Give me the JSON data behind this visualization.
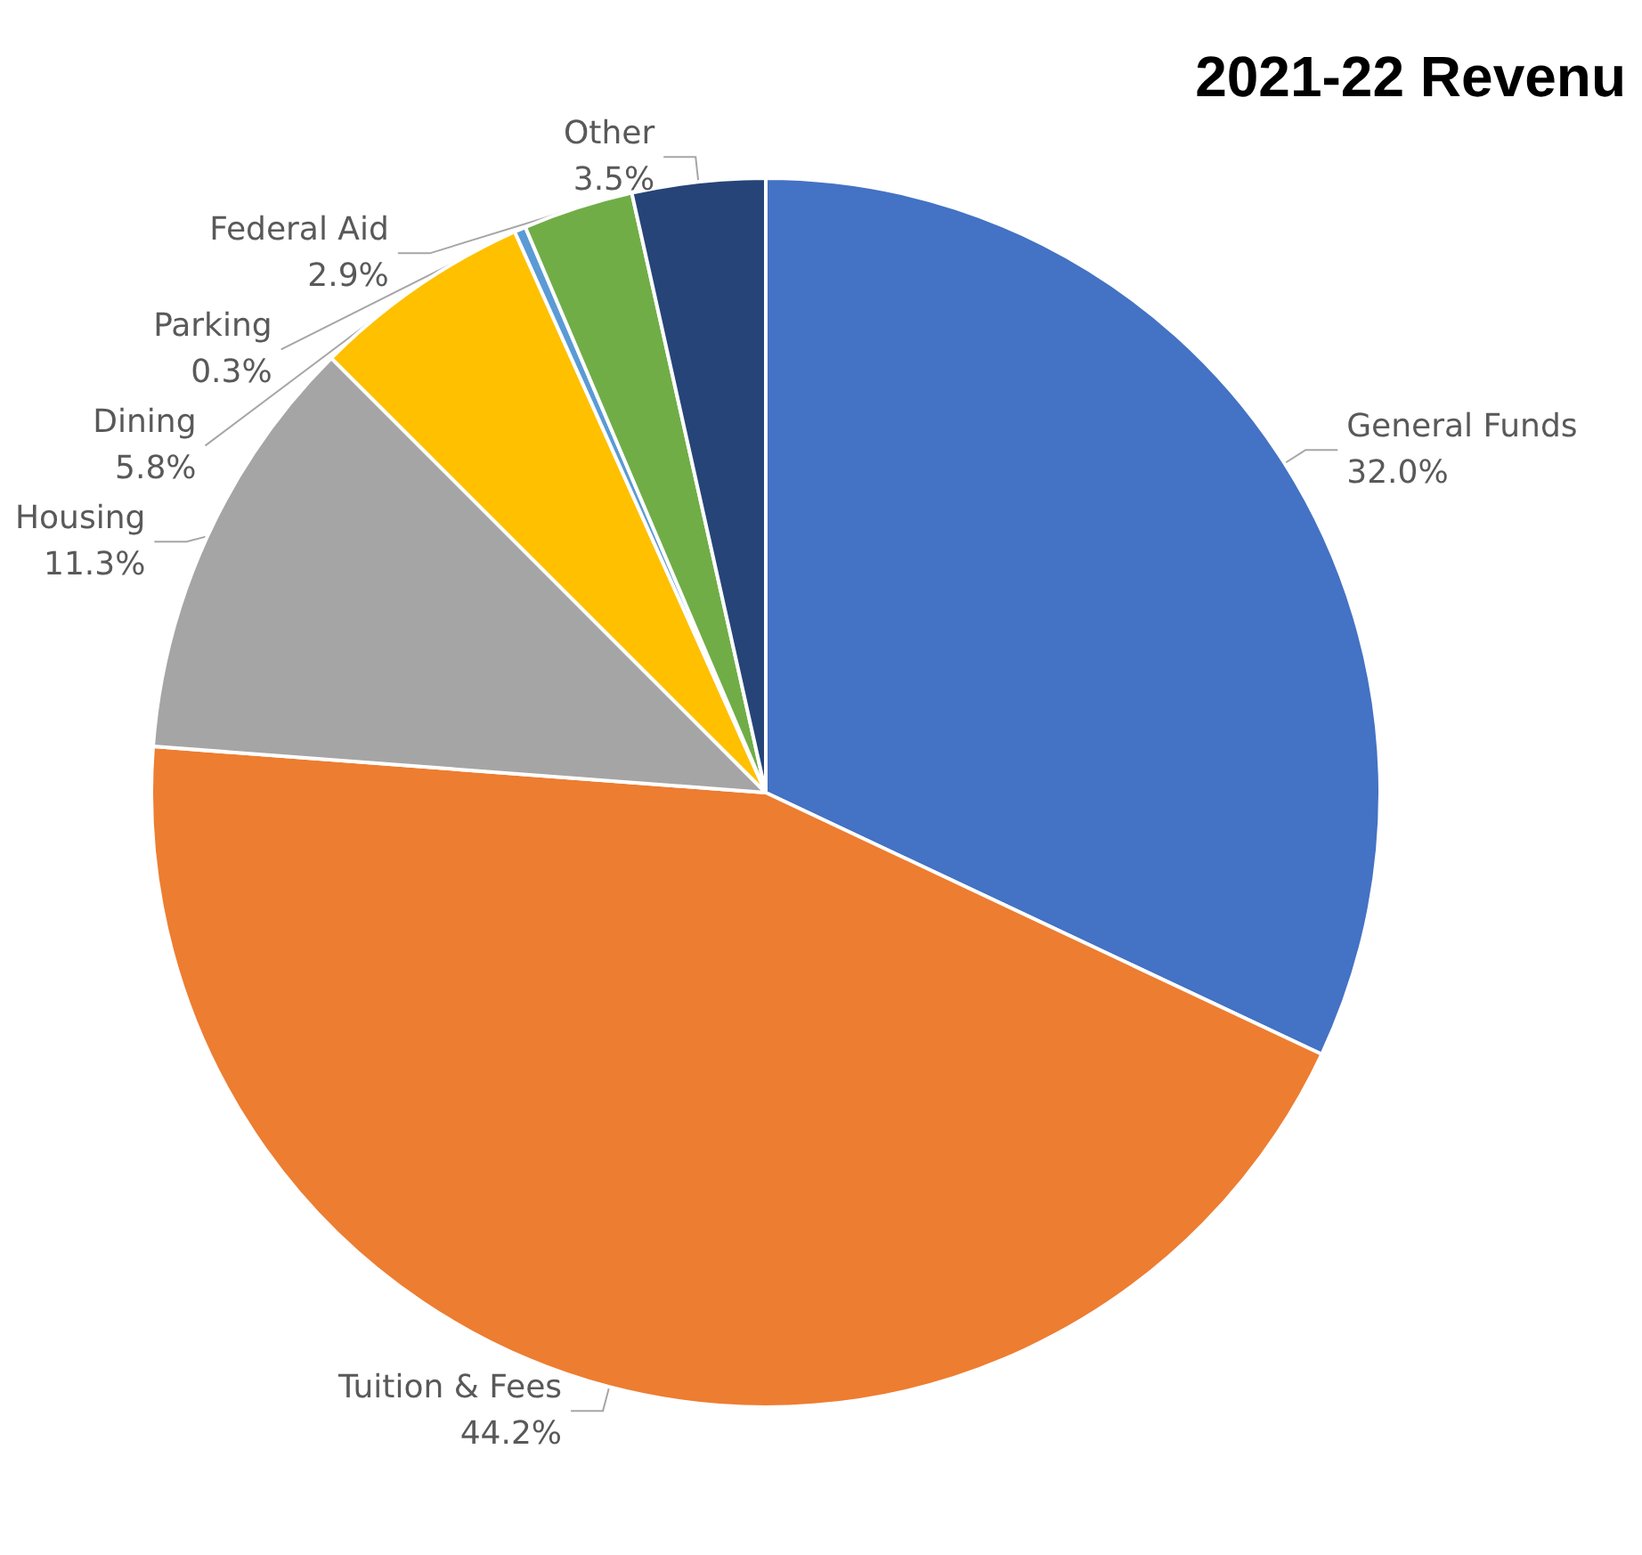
{
  "chart_data": {
    "type": "pie",
    "title": "2021-22 Revenu",
    "categories": [
      "General Funds",
      "Tuition & Fees",
      "Housing",
      "Dining",
      "Parking",
      "Federal Aid",
      "Other"
    ],
    "values": [
      32.0,
      44.2,
      11.3,
      5.8,
      0.3,
      2.9,
      3.5
    ],
    "value_labels": [
      "32.0%",
      "44.2%",
      "11.3%",
      "5.8%",
      "0.3%",
      "2.9%",
      "3.5%"
    ],
    "colors": [
      "#4472c4",
      "#ed7d31",
      "#a5a5a5",
      "#ffc000",
      "#5b9bd5",
      "#70ad47",
      "#264478"
    ],
    "legend": false
  }
}
